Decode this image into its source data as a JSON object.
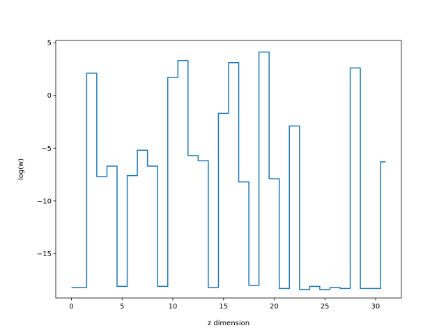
{
  "chart_data": {
    "type": "line",
    "drawstyle": "steps-mid",
    "title": "",
    "xlabel": "z dimension",
    "ylabel": "log(w)",
    "xlim": [
      -1.55,
      32.55
    ],
    "ylim": [
      -19.2,
      5.2
    ],
    "xticks": [
      0,
      5,
      10,
      15,
      20,
      25,
      30
    ],
    "yticks": [
      5,
      0,
      -5,
      -10,
      -15
    ],
    "ytick_labels": [
      "5",
      "0",
      "−5",
      "−10",
      "−15"
    ],
    "grid": false,
    "line_color": "#1f77b4",
    "x": [
      0,
      1,
      2,
      3,
      4,
      5,
      6,
      7,
      8,
      9,
      10,
      11,
      12,
      13,
      14,
      15,
      16,
      17,
      18,
      19,
      20,
      21,
      22,
      23,
      24,
      25,
      26,
      27,
      28,
      29,
      30,
      31
    ],
    "values": [
      -18.2,
      -18.2,
      2.1,
      -7.7,
      -6.7,
      -18.1,
      -7.6,
      -5.2,
      -6.7,
      -18.1,
      1.7,
      3.3,
      -5.7,
      -6.2,
      -18.2,
      -1.7,
      3.1,
      -8.2,
      -18.0,
      4.1,
      -7.9,
      -18.3,
      -2.9,
      -18.4,
      -18.1,
      -18.4,
      -18.2,
      -18.3,
      2.6,
      -18.3,
      -18.3,
      -6.3
    ]
  }
}
